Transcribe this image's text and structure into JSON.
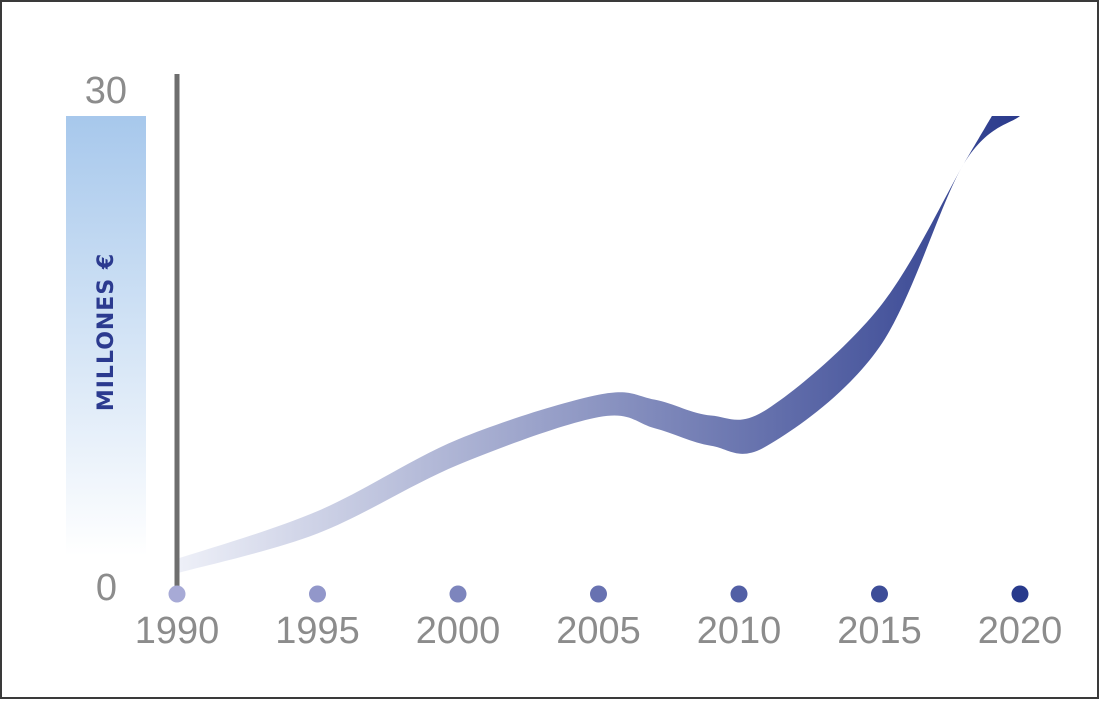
{
  "chart_data": {
    "type": "area",
    "title": "",
    "xlabel": "",
    "ylabel": "MILLONES €",
    "x_ticks": [
      "1990",
      "1995",
      "2000",
      "2005",
      "2010",
      "2015",
      "2020"
    ],
    "y_ticks": [
      "0",
      "30"
    ],
    "ylim": [
      0,
      30
    ],
    "xlim": [
      1990,
      2020
    ],
    "grid": false,
    "band": {
      "upper": [
        {
          "x": 1990,
          "y": 2.2
        },
        {
          "x": 1995,
          "y": 5.2
        },
        {
          "x": 2000,
          "y": 9.7
        },
        {
          "x": 2005,
          "y": 12.5
        },
        {
          "x": 2007,
          "y": 12.2
        },
        {
          "x": 2009,
          "y": 11.2
        },
        {
          "x": 2011,
          "y": 11.6
        },
        {
          "x": 2015,
          "y": 18.0
        },
        {
          "x": 2018,
          "y": 27.0
        },
        {
          "x": 2020,
          "y": 29.0
        }
      ],
      "lower": [
        {
          "x": 2020,
          "y": 29.0
        },
        {
          "x": 2018,
          "y": 27.0
        },
        {
          "x": 2015,
          "y": 15.5
        },
        {
          "x": 2011,
          "y": 9.3
        },
        {
          "x": 2009,
          "y": 9.3
        },
        {
          "x": 2007,
          "y": 10.4
        },
        {
          "x": 2005,
          "y": 11.1
        },
        {
          "x": 2000,
          "y": 8.1
        },
        {
          "x": 1995,
          "y": 3.8
        },
        {
          "x": 1990,
          "y": 1.3
        }
      ],
      "top_end_x": [
        2019.0,
        2020.0
      ]
    },
    "colors": {
      "band_start": "#eef0f8",
      "band_end": "#2a3a8c",
      "axis": "#6e6e6e",
      "axis_light": "#f3f3f3",
      "tick_text": "#8c8c8c",
      "ylabel_text": "#2b3a8f",
      "ylabel_bar_top": "#a7c8ec",
      "dot_start": "#a7aad6",
      "dot_end": "#283a8c"
    }
  }
}
